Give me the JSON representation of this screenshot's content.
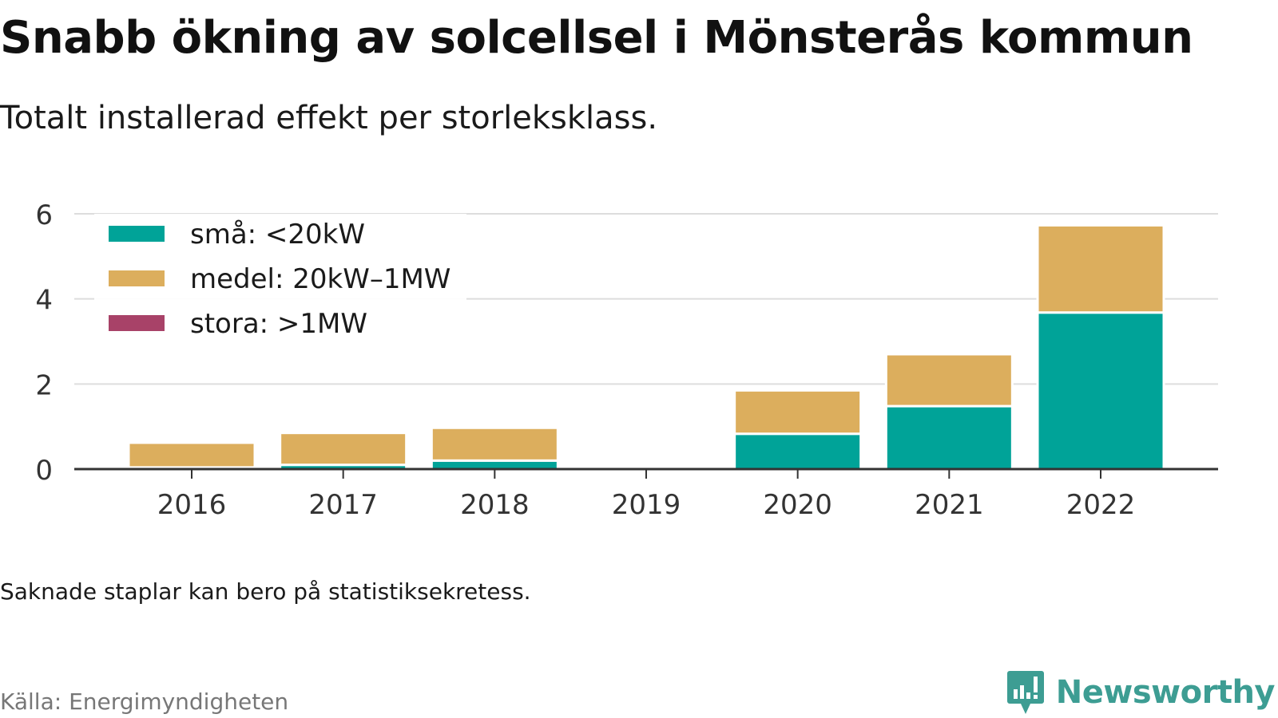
{
  "title": "Snabb ökning av solcellsel i Mönsterås kommun",
  "subtitle": "Totalt installerad effekt per storleksklass.",
  "note": "Saknade staplar kan bero på statistiksekretess.",
  "source": "Källa: Energimyndigheten",
  "brand": "Newsworthy",
  "colors": {
    "sma": "#00a398",
    "medel": "#dcae5d",
    "stora": "#a84268",
    "grid": "#dddddd",
    "axis": "#333333",
    "brand": "#3d9d93"
  },
  "chart_data": {
    "type": "bar",
    "stacked": true,
    "categories": [
      "2016",
      "2017",
      "2018",
      "2019",
      "2020",
      "2021",
      "2022"
    ],
    "series": [
      {
        "name": "små: <20kW",
        "color": "#00a398",
        "values": [
          0.04,
          0.1,
          0.2,
          0,
          0.83,
          1.48,
          3.68
        ]
      },
      {
        "name": "medel: 20kW–1MW",
        "color": "#dcae5d",
        "values": [
          0.58,
          0.75,
          0.77,
          0,
          1.02,
          1.22,
          2.05
        ]
      },
      {
        "name": "stora: >1MW",
        "color": "#a84268",
        "values": [
          0,
          0,
          0,
          0,
          0,
          0,
          0
        ]
      }
    ],
    "yticks": [
      0,
      2,
      4,
      6
    ],
    "ylim": [
      0,
      6
    ],
    "xlabel": "",
    "ylabel": "",
    "grid": true,
    "legend_position": "top-left"
  }
}
